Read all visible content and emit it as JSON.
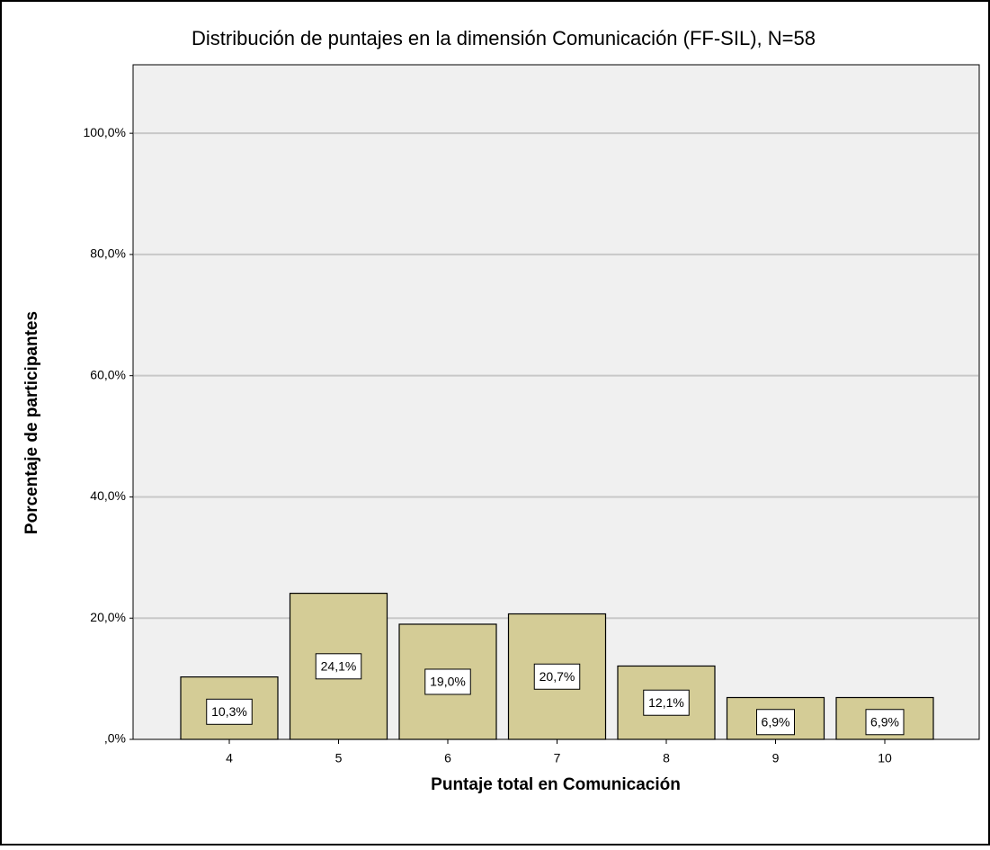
{
  "chart_data": {
    "type": "bar",
    "title": "Distribución de puntajes en la dimensión Comunicación (FF-SIL), N=58",
    "x_label": "Puntaje total en Comunicación",
    "y_label": "Porcentaje de participantes",
    "categories": [
      "4",
      "5",
      "6",
      "7",
      "8",
      "9",
      "10"
    ],
    "values": [
      10.3,
      24.1,
      19.0,
      20.7,
      12.1,
      6.9,
      6.9
    ],
    "value_labels": [
      "10,3%",
      "24,1%",
      "19,0%",
      "20,7%",
      "12,1%",
      "6,9%",
      "6,9%"
    ],
    "color": "#d4cc96",
    "ylim": [
      0,
      111.3
    ],
    "yticks": [
      {
        "value": 0,
        "label": ",0%"
      },
      {
        "value": 20,
        "label": "20,0%"
      },
      {
        "value": 40,
        "label": "40,0%"
      },
      {
        "value": 60,
        "label": "60,0%"
      },
      {
        "value": 80,
        "label": "80,0%"
      },
      {
        "value": 100,
        "label": "100,0%"
      }
    ],
    "grid": true
  }
}
